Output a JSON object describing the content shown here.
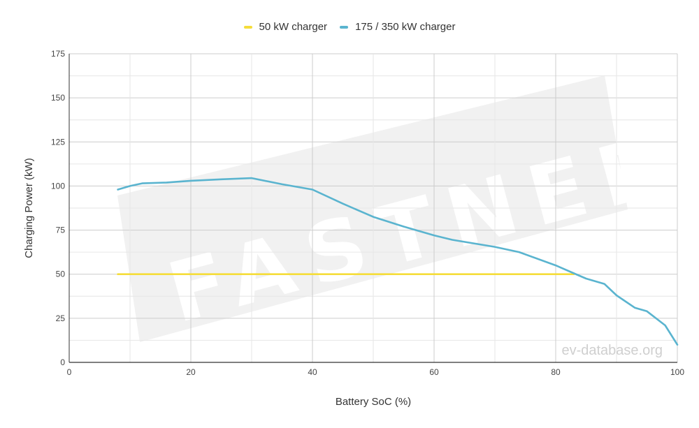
{
  "legend": [
    {
      "label": "50 kW charger",
      "color": "#f5dd3a"
    },
    {
      "label": "175 / 350 kW charger",
      "color": "#5ab4cf"
    }
  ],
  "watermarks": {
    "brand": "FASTNED",
    "source": "ev-database.org"
  },
  "chart_data": {
    "type": "line",
    "title": "",
    "xlabel": "Battery SoC (%)",
    "ylabel": "Charging Power (kW)",
    "xlim": [
      0,
      100
    ],
    "ylim": [
      0,
      175
    ],
    "xticks": [
      0,
      20,
      40,
      60,
      80,
      100
    ],
    "yticks": [
      0,
      25,
      50,
      75,
      100,
      125,
      150,
      175
    ],
    "grid": true,
    "legend_position": "top",
    "series": [
      {
        "name": "50 kW charger",
        "color": "#f5dd3a",
        "x": [
          8,
          83
        ],
        "y": [
          50,
          50
        ]
      },
      {
        "name": "175 / 350 kW charger",
        "color": "#5ab4cf",
        "x": [
          8,
          10,
          12,
          16,
          20,
          25,
          30,
          35,
          40,
          45,
          50,
          55,
          60,
          63,
          70,
          74,
          80,
          83,
          85,
          88,
          90,
          93,
          95,
          98,
          100
        ],
        "y": [
          98,
          100,
          101.5,
          102,
          103,
          103.8,
          104.5,
          101,
          98,
          90,
          82.5,
          77,
          72,
          69.5,
          65.5,
          62.5,
          55,
          50.5,
          47.5,
          44.5,
          38,
          31,
          29,
          21,
          10
        ]
      }
    ]
  }
}
